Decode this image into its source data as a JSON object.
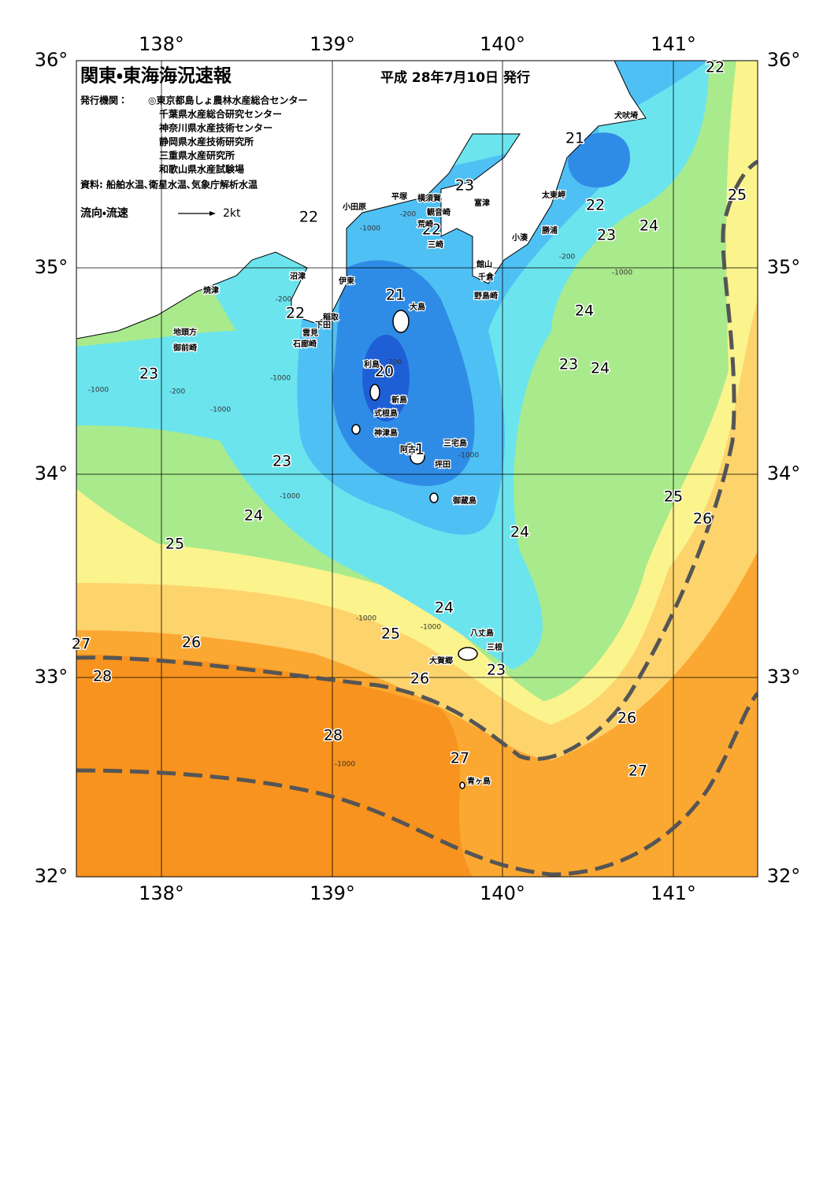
{
  "header": {
    "title": "関東・東海海況速報",
    "date": "平成 28年7月10日 発行",
    "issuer_label": "発行機関：",
    "issuers": [
      "◎東京都島しょ農林水産総合センター",
      "千葉県水産総合研究センター",
      "神奈川県水産技術センター",
      "静岡県水産技術研究所",
      "三重県水産研究所",
      "和歌山県水産試験場"
    ],
    "source": "資料: 船舶水温､衛星水温､気象庁解析水温",
    "legend_label": "流向・流速",
    "legend_speed": "2kt"
  },
  "axes": {
    "lon": [
      "138°",
      "139°",
      "140°",
      "141°"
    ],
    "lat": [
      "36°",
      "35°",
      "34°",
      "33°",
      "32°"
    ]
  },
  "temperatures": [
    22,
    21,
    23,
    22,
    22,
    22,
    23,
    24,
    25,
    21,
    22,
    24,
    23,
    20,
    23,
    24,
    21,
    23,
    25,
    24,
    26,
    24,
    25,
    24,
    25,
    27,
    26,
    23,
    28,
    26,
    26,
    28,
    27,
    27
  ],
  "places": [
    "犬吠埼",
    "太東岬",
    "勝浦",
    "小湊",
    "館山",
    "千倉",
    "野島崎",
    "平塚",
    "横須賀",
    "富津",
    "小田原",
    "観音崎",
    "荒崎",
    "三崎",
    "沼津",
    "伊東",
    "焼津",
    "大島",
    "稲取",
    "下田",
    "雲見",
    "石廊崎",
    "地頭方",
    "御前崎",
    "利島",
    "新島",
    "式根島",
    "神津島",
    "三宅島",
    "阿古",
    "坪田",
    "御蔵島",
    "八丈島",
    "三根",
    "大賀郷",
    "青ヶ島"
  ],
  "depths": [
    "-200",
    "-1000",
    "-200",
    "-1000",
    "-1000",
    "-200",
    "-1000",
    "-200",
    "-1000",
    "-1000",
    "-200",
    "-1000",
    "-1000",
    "-1000",
    "-1000"
  ]
}
